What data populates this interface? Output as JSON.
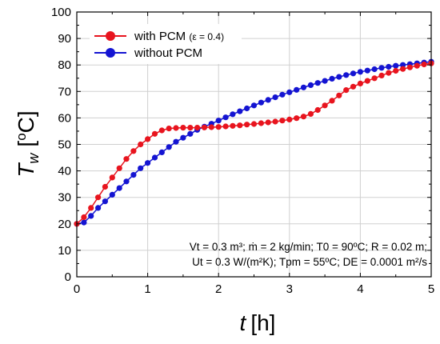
{
  "chart_data": {
    "type": "line",
    "xlabel": "t [h]",
    "ylabel": "Tw [oC]",
    "xlim": [
      0,
      5
    ],
    "ylim": [
      0,
      100
    ],
    "xticks": [
      "0",
      "1",
      "2",
      "3",
      "4",
      "5"
    ],
    "yticks": [
      "0",
      "10",
      "20",
      "30",
      "40",
      "50",
      "60",
      "70",
      "80",
      "90",
      "100"
    ],
    "grid": true,
    "legend_position": "top-left",
    "series": [
      {
        "name": "with PCM (ε = 0.4)",
        "color": "#e8141e",
        "x": [
          0.0,
          0.1,
          0.2,
          0.3,
          0.4,
          0.5,
          0.6,
          0.7,
          0.8,
          0.9,
          1.0,
          1.1,
          1.2,
          1.3,
          1.4,
          1.5,
          1.6,
          1.7,
          1.8,
          1.9,
          2.0,
          2.1,
          2.2,
          2.3,
          2.4,
          2.5,
          2.6,
          2.7,
          2.8,
          2.9,
          3.0,
          3.1,
          3.2,
          3.3,
          3.4,
          3.5,
          3.6,
          3.7,
          3.8,
          3.9,
          4.0,
          4.1,
          4.2,
          4.3,
          4.4,
          4.5,
          4.6,
          4.7,
          4.8,
          4.9,
          5.0
        ],
        "y": [
          20,
          22.5,
          26,
          30,
          34,
          37.5,
          41,
          44.5,
          47.5,
          50,
          52,
          54,
          55.3,
          56,
          56.2,
          56.3,
          56.3,
          56.3,
          56.4,
          56.5,
          56.6,
          56.8,
          57,
          57.2,
          57.5,
          57.7,
          58,
          58.3,
          58.6,
          59,
          59.4,
          59.9,
          60.5,
          61.5,
          63,
          64.7,
          66.5,
          68.5,
          70.5,
          71.8,
          73,
          74,
          75,
          76,
          77,
          77.8,
          78.5,
          79.1,
          79.7,
          80.2,
          80.6
        ]
      },
      {
        "name": "without PCM",
        "color": "#1414d2",
        "x": [
          0.0,
          0.1,
          0.2,
          0.3,
          0.4,
          0.5,
          0.6,
          0.7,
          0.8,
          0.9,
          1.0,
          1.1,
          1.2,
          1.3,
          1.4,
          1.5,
          1.6,
          1.7,
          1.8,
          1.9,
          2.0,
          2.1,
          2.2,
          2.3,
          2.4,
          2.5,
          2.6,
          2.7,
          2.8,
          2.9,
          3.0,
          3.1,
          3.2,
          3.3,
          3.4,
          3.5,
          3.6,
          3.7,
          3.8,
          3.9,
          4.0,
          4.1,
          4.2,
          4.3,
          4.4,
          4.5,
          4.6,
          4.7,
          4.8,
          4.9,
          5.0
        ],
        "y": [
          20,
          20.5,
          23,
          26,
          28.5,
          31,
          33.5,
          36,
          38.5,
          41,
          43,
          45,
          47,
          49,
          51,
          52.5,
          54,
          55.5,
          56.7,
          57.8,
          59,
          60.2,
          61.4,
          62.5,
          63.6,
          64.7,
          65.8,
          66.8,
          67.8,
          68.8,
          69.7,
          70.6,
          71.5,
          72.4,
          73.2,
          74,
          74.8,
          75.5,
          76.2,
          76.8,
          77.4,
          77.9,
          78.4,
          78.9,
          79.3,
          79.7,
          80.0,
          80.3,
          80.6,
          80.9,
          81.2
        ]
      }
    ],
    "legend": [
      {
        "label_main": "with PCM",
        "label_sub": "(ε = 0.4)",
        "color": "#e8141e"
      },
      {
        "label_main": "without PCM",
        "label_sub": "",
        "color": "#1414d2"
      }
    ],
    "annotation": {
      "line1": "Vt = 0.3 m³; ṁ = 2 kg/min; T0 = 90ºC; R = 0.02 m;",
      "line2": "Ut = 0.3 W/(m²K); Tpm = 55ºC; DE = 0.0001 m²/s"
    },
    "axis_text": {
      "y_main": "T",
      "y_sub": "w",
      "y_unit_open": "[",
      "y_unit_sup": "o",
      "y_unit_rest": "C]",
      "x_main": "t",
      "x_unit": "[h]"
    }
  }
}
